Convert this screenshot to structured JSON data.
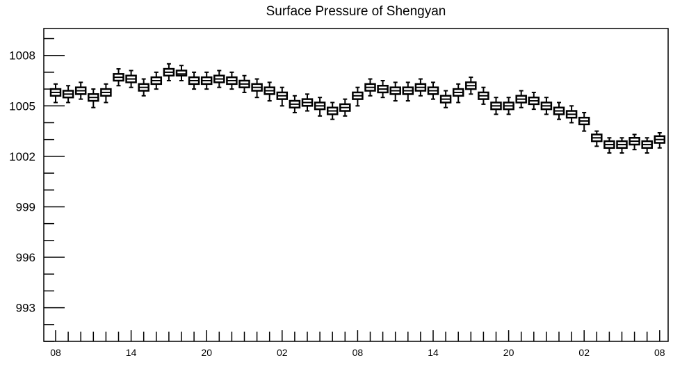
{
  "chart_data": {
    "type": "box",
    "title": "Surface Pressure of Shengyan",
    "xlabel": "",
    "ylabel": "",
    "y_ticks": [
      993,
      996,
      999,
      1002,
      1005,
      1008
    ],
    "y_tick_labels": [
      "993",
      "996",
      "999",
      "1002",
      "1005",
      "1008"
    ],
    "ylim": [
      991,
      1009.6
    ],
    "x_tick_labels": [
      "08",
      "14",
      "20",
      "02",
      "08",
      "14",
      "20",
      "02",
      "08"
    ],
    "x_tick_every": 6,
    "grid": false,
    "legend": "none",
    "colors": {
      "box_edge": "#000000",
      "box_fill": "#ffffff",
      "axis": "#000000"
    },
    "series": [
      {
        "median": [
          1005.8,
          1005.7,
          1005.9,
          1005.5,
          1005.8,
          1006.7,
          1006.6,
          1006.1,
          1006.5,
          1007.0,
          1006.9,
          1006.5,
          1006.5,
          1006.6,
          1006.5,
          1006.3,
          1006.1,
          1005.9,
          1005.6,
          1005.1,
          1005.2,
          1005.0,
          1004.7,
          1004.9,
          1005.6,
          1006.1,
          1006.0,
          1005.9,
          1005.9,
          1006.1,
          1005.9,
          1005.4,
          1005.8,
          1006.2,
          1005.6,
          1005.0,
          1005.0,
          1005.4,
          1005.3,
          1005.0,
          1004.7,
          1004.5,
          1004.1,
          1003.1,
          1002.7,
          1002.7,
          1002.9,
          1002.7,
          1003.0
        ],
        "q1": [
          1005.6,
          1005.5,
          1005.7,
          1005.3,
          1005.6,
          1006.5,
          1006.4,
          1005.9,
          1006.3,
          1006.8,
          1006.8,
          1006.3,
          1006.3,
          1006.4,
          1006.3,
          1006.1,
          1005.9,
          1005.7,
          1005.4,
          1004.9,
          1005.0,
          1004.8,
          1004.5,
          1004.7,
          1005.4,
          1005.9,
          1005.8,
          1005.7,
          1005.7,
          1005.9,
          1005.7,
          1005.2,
          1005.6,
          1006.0,
          1005.4,
          1004.8,
          1004.8,
          1005.2,
          1005.1,
          1004.8,
          1004.5,
          1004.3,
          1003.9,
          1002.9,
          1002.5,
          1002.5,
          1002.7,
          1002.5,
          1002.8
        ],
        "q3": [
          1006.0,
          1005.9,
          1006.1,
          1005.7,
          1006.0,
          1006.9,
          1006.8,
          1006.3,
          1006.7,
          1007.2,
          1007.1,
          1006.7,
          1006.7,
          1006.8,
          1006.7,
          1006.5,
          1006.3,
          1006.1,
          1005.8,
          1005.3,
          1005.4,
          1005.2,
          1004.9,
          1005.1,
          1005.8,
          1006.3,
          1006.2,
          1006.1,
          1006.1,
          1006.3,
          1006.1,
          1005.6,
          1006.0,
          1006.4,
          1005.8,
          1005.2,
          1005.2,
          1005.6,
          1005.5,
          1005.2,
          1004.9,
          1004.7,
          1004.3,
          1003.3,
          1002.9,
          1002.9,
          1003.1,
          1002.9,
          1003.2
        ],
        "min": [
          1005.2,
          1005.2,
          1005.4,
          1004.9,
          1005.2,
          1006.2,
          1006.1,
          1005.6,
          1006.0,
          1006.5,
          1006.5,
          1006.0,
          1006.0,
          1006.1,
          1006.0,
          1005.8,
          1005.5,
          1005.3,
          1005.0,
          1004.6,
          1004.7,
          1004.4,
          1004.2,
          1004.4,
          1005.0,
          1005.6,
          1005.5,
          1005.3,
          1005.3,
          1005.6,
          1005.4,
          1004.9,
          1005.2,
          1005.7,
          1005.1,
          1004.5,
          1004.5,
          1004.9,
          1004.8,
          1004.5,
          1004.2,
          1004.0,
          1003.5,
          1002.6,
          1002.2,
          1002.2,
          1002.4,
          1002.2,
          1002.5
        ],
        "max": [
          1006.3,
          1006.2,
          1006.4,
          1006.0,
          1006.3,
          1007.2,
          1007.1,
          1006.6,
          1007.0,
          1007.5,
          1007.4,
          1007.0,
          1007.0,
          1007.1,
          1007.0,
          1006.8,
          1006.6,
          1006.4,
          1006.1,
          1005.6,
          1005.7,
          1005.5,
          1005.2,
          1005.4,
          1006.1,
          1006.6,
          1006.5,
          1006.4,
          1006.4,
          1006.6,
          1006.4,
          1005.9,
          1006.3,
          1006.7,
          1006.1,
          1005.5,
          1005.5,
          1005.9,
          1005.8,
          1005.5,
          1005.2,
          1005.0,
          1004.6,
          1003.5,
          1003.1,
          1003.1,
          1003.3,
          1003.1,
          1003.4
        ]
      }
    ]
  }
}
